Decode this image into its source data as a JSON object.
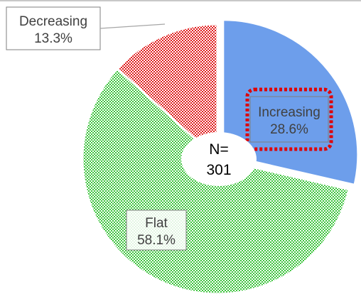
{
  "chart_data": {
    "type": "pie",
    "variant": "donut",
    "center_label": {
      "line1": "N=",
      "line2": "301"
    },
    "slices": [
      {
        "name": "Increasing",
        "value": 28.6,
        "value_label": "28.6%",
        "color": "#6d9eeb",
        "pattern": "solid",
        "exploded": true,
        "highlighted": true,
        "highlight_color": "#e00000"
      },
      {
        "name": "Flat",
        "value": 58.1,
        "value_label": "58.1%",
        "color": "#3dc43d",
        "pattern": "checkered",
        "exploded": false
      },
      {
        "name": "Decreasing",
        "value": 13.3,
        "value_label": "13.3%",
        "color": "#e01b1b",
        "pattern": "checkered",
        "exploded": false
      }
    ],
    "start": "top",
    "direction": "clockwise",
    "legend": "none"
  }
}
